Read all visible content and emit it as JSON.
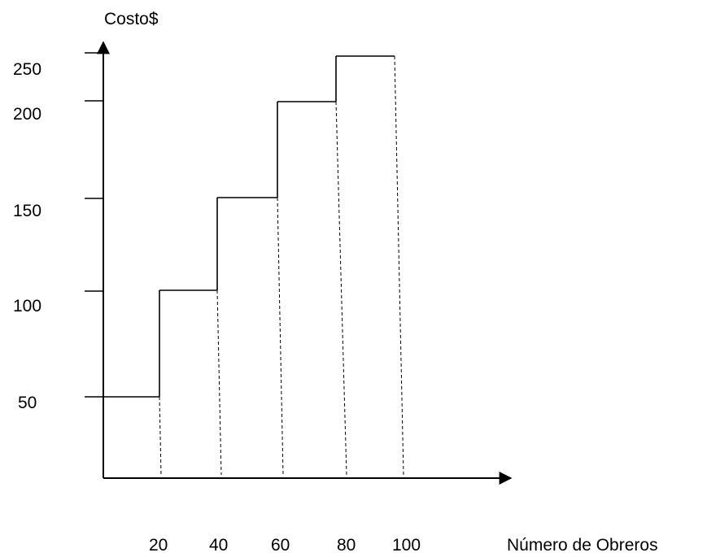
{
  "chart_data": {
    "type": "line",
    "style": "step",
    "title": "",
    "xlabel": "Número de Obreros",
    "ylabel": "Costo$",
    "x_ticks": [
      "20",
      "40",
      "60",
      "80",
      "100"
    ],
    "y_ticks": [
      "250",
      "200",
      "150",
      "100",
      "50"
    ],
    "ylim": [
      0,
      250
    ],
    "grid": false,
    "series": [
      {
        "steps": [
          {
            "x_start": 0,
            "x_end": 20,
            "y": 50
          },
          {
            "x_start": 20,
            "x_end": 40,
            "y": 100
          },
          {
            "x_start": 40,
            "x_end": 60,
            "y": 150
          },
          {
            "x_start": 60,
            "x_end": 80,
            "y": 200
          },
          {
            "x_start": 80,
            "x_end": 100,
            "y": 250
          }
        ]
      }
    ]
  }
}
